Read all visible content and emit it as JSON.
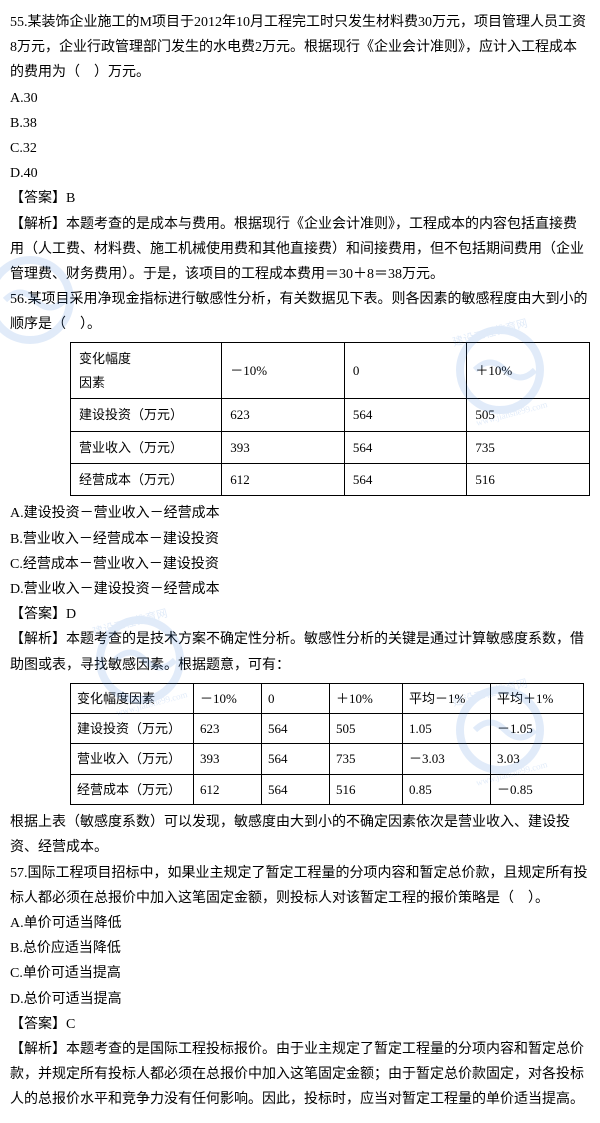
{
  "q55": {
    "stem": "55.某装饰企业施工的M项目于2012年10月工程完工时只发生材料费30万元，项目管理人员工资8万元，企业行政管理部门发生的水电费2万元。根据现行《企业会计准则》，应计入工程成本的费用为（　）万元。",
    "optA": "A.30",
    "optB": "B.38",
    "optC": "C.32",
    "optD": "D.40",
    "answer": "【答案】B",
    "explain": "【解析】本题考查的是成本与费用。根据现行《企业会计准则》，工程成本的内容包括直接费用（人工费、材料费、施工机械使用费和其他直接费）和间接费用，但不包括期间费用（企业管理费、财务费用）。于是，该项目的工程成本费用＝30＋8＝38万元。"
  },
  "q56": {
    "stem": "56.某项目采用净现金指标进行敏感性分析，有关数据见下表。则各因素的敏感程度由大到小的顺序是（　）。",
    "table1": {
      "header": [
        "变化幅度\n因素",
        "－10%",
        "0",
        "＋10%"
      ],
      "rows": [
        [
          "建设投资（万元）",
          "623",
          "564",
          "505"
        ],
        [
          "营业收入（万元）",
          "393",
          "564",
          "735"
        ],
        [
          "经营成本（万元）",
          "612",
          "564",
          "516"
        ]
      ],
      "col_widths": [
        "140px",
        "110px",
        "110px",
        "110px"
      ]
    },
    "optA": "A.建设投资－营业收入－经营成本",
    "optB": "B.营业收入－经营成本－建设投资",
    "optC": "C.经营成本－营业收入－建设投资",
    "optD": "D.营业收入－建设投资－经营成本",
    "answer": "【答案】D",
    "explain1": "【解析】本题考查的是技术方案不确定性分析。敏感性分析的关键是通过计算敏感度系数，借助图或表，寻找敏感因素。根据题意，可有：",
    "table2": {
      "header": [
        "变化幅度因素",
        "－10%",
        "0",
        "＋10%",
        "平均－1%",
        "平均＋1%"
      ],
      "rows": [
        [
          "建设投资（万元）",
          "623",
          "564",
          "505",
          "1.05",
          "－1.05"
        ],
        [
          "营业收入（万元）",
          "393",
          "564",
          "735",
          "－3.03",
          "3.03"
        ],
        [
          "经营成本（万元）",
          "612",
          "564",
          "516",
          "0.85",
          "－0.85"
        ]
      ],
      "col_widths": [
        "110px",
        "55px",
        "55px",
        "60px",
        "75px",
        "80px"
      ]
    },
    "explain2": "根据上表（敏感度系数）可以发现，敏感度由大到小的不确定因素依次是营业收入、建设投资、经营成本。"
  },
  "q57": {
    "stem": "57.国际工程项目招标中，如果业主规定了暂定工程量的分项内容和暂定总价款，且规定所有投标人都必须在总报价中加入这笔固定金额，则投标人对该暂定工程的报价策略是（　）。",
    "optA": "A.单价可适当降低",
    "optB": "B.总价应适当降低",
    "optC": "C.单价可适当提高",
    "optD": "D.总价可适当提高",
    "answer": "【答案】C",
    "explain": "【解析】本题考查的是国际工程投标报价。由于业主规定了暂定工程量的分项内容和暂定总价款，并规定所有投标人都必须在总报价中加入这笔固定金额；由于暂定总价款固定，对各投标人的总报价水平和竞争力没有任何影响。因此，投标时，应当对暂定工程量的单价适当提高。"
  },
  "watermark_text": "建设工程教育网",
  "watermark_url": "www.jianshe99.com",
  "watermark_color": "#5b9bd5"
}
